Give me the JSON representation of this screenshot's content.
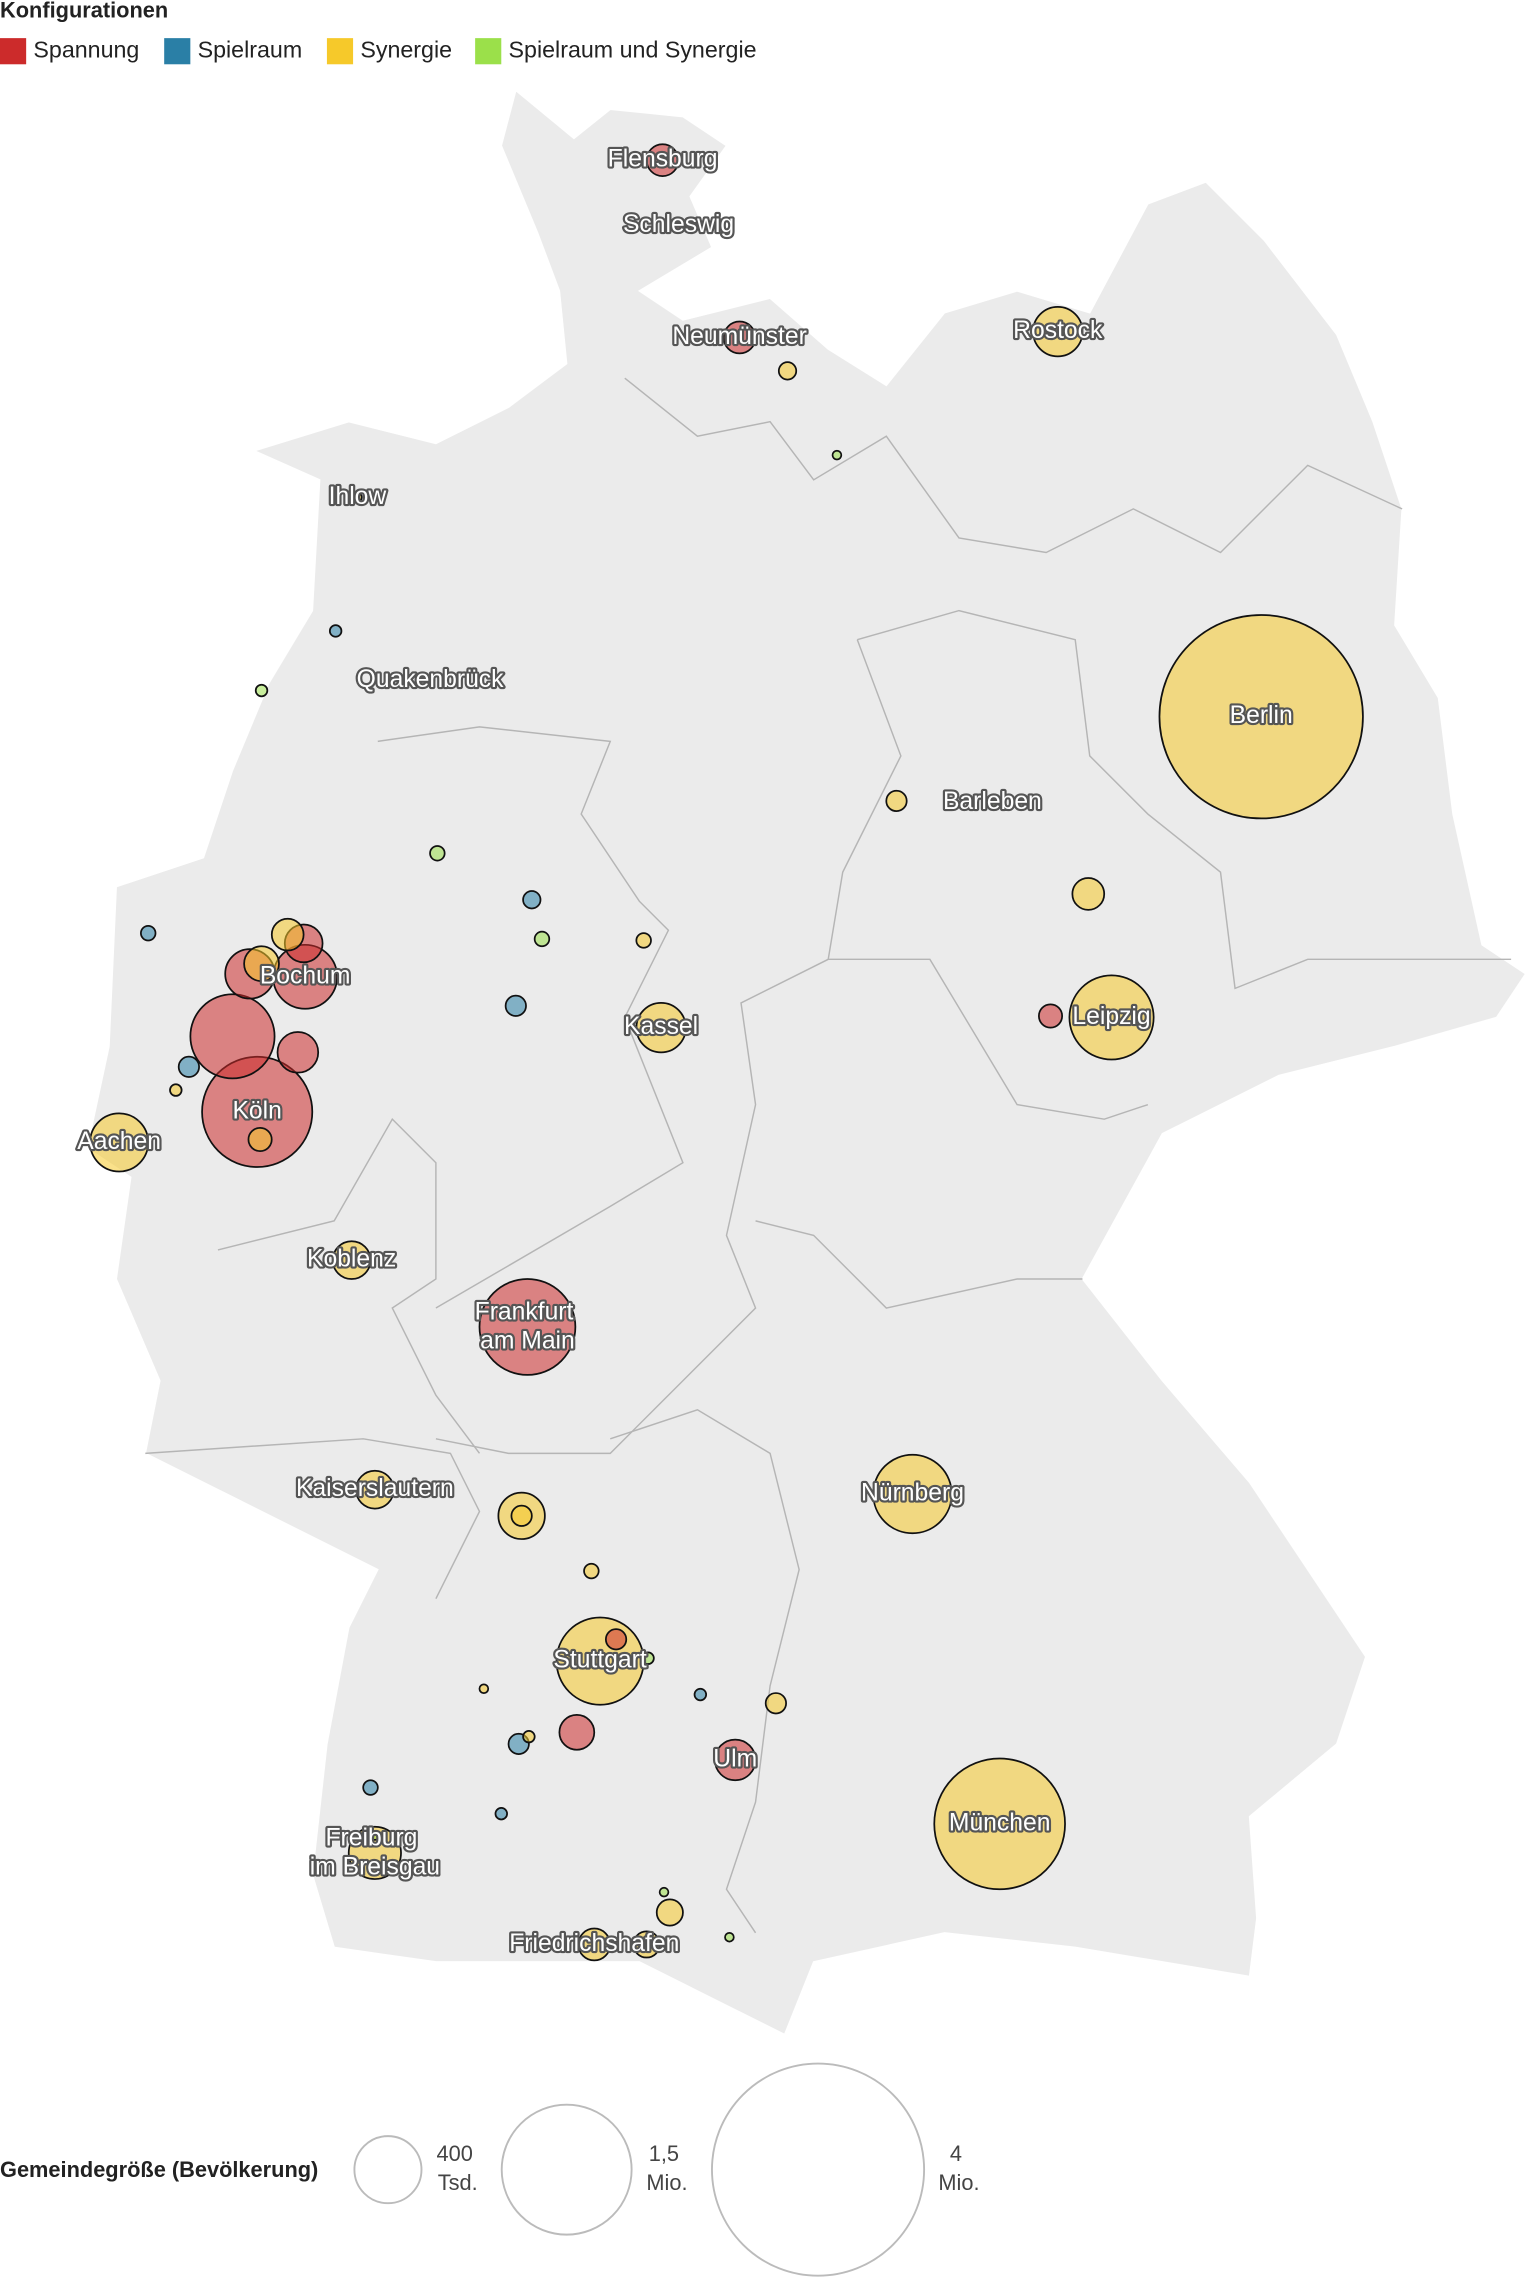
{
  "legend": {
    "title": "Konfigurationen",
    "items": [
      {
        "label": "Spannung",
        "color": "#cc2b2b"
      },
      {
        "label": "Spielraum",
        "color": "#2a7fa6"
      },
      {
        "label": "Synergie",
        "color": "#f6c92a"
      },
      {
        "label": "Spielraum und Synergie",
        "color": "#9be04a"
      }
    ]
  },
  "bubbles": [
    {
      "config": 2,
      "population": 3680000,
      "label": "Berlin"
    },
    {
      "config": 2,
      "population": 1520000,
      "label": "München"
    },
    {
      "config": 0,
      "population": 1080000,
      "label": "Köln"
    },
    {
      "config": 0,
      "population": 817000,
      "label": "Frankfurt am Main"
    },
    {
      "config": 2,
      "population": 675000,
      "label": "Stuttgart"
    },
    {
      "config": 0,
      "population": 630000
    },
    {
      "config": 2,
      "population": 630000,
      "label": "Leipzig"
    },
    {
      "config": 2,
      "population": 547000,
      "label": "Nürnberg"
    },
    {
      "config": 0,
      "population": 363000,
      "label": "Bochum"
    },
    {
      "config": 2,
      "population": 300000,
      "label": "Aachen"
    },
    {
      "config": 2,
      "population": 243000,
      "label": "Freiburg im Breisgau"
    },
    {
      "config": 0,
      "population": 217000
    },
    {
      "config": 2,
      "population": 217000,
      "label": "Rostock"
    },
    {
      "config": 2,
      "population": 217000,
      "label": "Kassel"
    },
    {
      "config": 2,
      "population": 192000
    },
    {
      "config": 0,
      "population": 147000
    },
    {
      "config": 0,
      "population": 147000,
      "label": "Ulm"
    },
    {
      "config": 0,
      "population": 127000
    },
    {
      "config": 2,
      "population": 127000,
      "label": "Koblenz"
    },
    {
      "config": 2,
      "population": 127000,
      "label": "Kaiserslautern"
    },
    {
      "config": 2,
      "population": 108000
    },
    {
      "config": 2,
      "population": 90000
    },
    {
      "config": 0,
      "population": 108000
    },
    {
      "config": 0,
      "population": 90000,
      "label": "Flensburg"
    },
    {
      "config": 0,
      "population": 90000,
      "label": "Neumünster"
    },
    {
      "config": 2,
      "population": 90000
    },
    {
      "config": 2,
      "population": 90000,
      "label": "Friedrichshafen"
    },
    {
      "config": 2,
      "population": 61000
    },
    {
      "config": 2,
      "population": 61000
    },
    {
      "config": 0,
      "population": 48000
    },
    {
      "config": 2,
      "population": 48000
    },
    {
      "config": 0,
      "population": 37000
    },
    {
      "config": 2,
      "population": 37000
    },
    {
      "config": 2,
      "population": 37000
    },
    {
      "config": 2,
      "population": 37000
    },
    {
      "config": 1,
      "population": 37000
    },
    {
      "config": 1,
      "population": 37000
    },
    {
      "config": 1,
      "population": 37000
    },
    {
      "config": 1,
      "population": 27000
    },
    {
      "config": 2,
      "population": 27000
    },
    {
      "config": 0,
      "population": 19000,
      "label": "Schleswig"
    },
    {
      "config": 1,
      "population": 19000
    },
    {
      "config": 1,
      "population": 19000
    },
    {
      "config": 2,
      "population": 19000
    },
    {
      "config": 2,
      "population": 19000
    },
    {
      "config": 3,
      "population": 19000
    },
    {
      "config": 3,
      "population": 19000
    },
    {
      "config": 1,
      "population": 12000
    },
    {
      "config": 1,
      "population": 12000
    },
    {
      "config": 1,
      "population": 12000
    },
    {
      "config": 2,
      "population": 12000
    },
    {
      "config": 2,
      "population": 12000
    },
    {
      "config": 3,
      "population": 12000
    },
    {
      "config": 3,
      "population": 12000
    },
    {
      "config": 0,
      "population": 6800,
      "label": "Quakenbrück"
    },
    {
      "config": 2,
      "population": 6800,
      "label": "Ihlow"
    },
    {
      "config": 2,
      "population": 6800
    },
    {
      "config": 3,
      "population": 6800
    },
    {
      "config": 3,
      "population": 6800
    },
    {
      "config": 3,
      "population": 6800
    },
    {
      "config": 3,
      "population": 6800
    },
    {
      "config": 3,
      "population": 6800,
      "label": "Barleben"
    }
  ],
  "size_legend": {
    "title": "Gemeindegröße (Bevölkerung)",
    "items": [
      {
        "value": 400000,
        "label": "400 Tsd."
      },
      {
        "value": 1500000,
        "label": "1,5 Mio."
      },
      {
        "value": 4000000,
        "label": "4 Mio."
      }
    ]
  }
}
